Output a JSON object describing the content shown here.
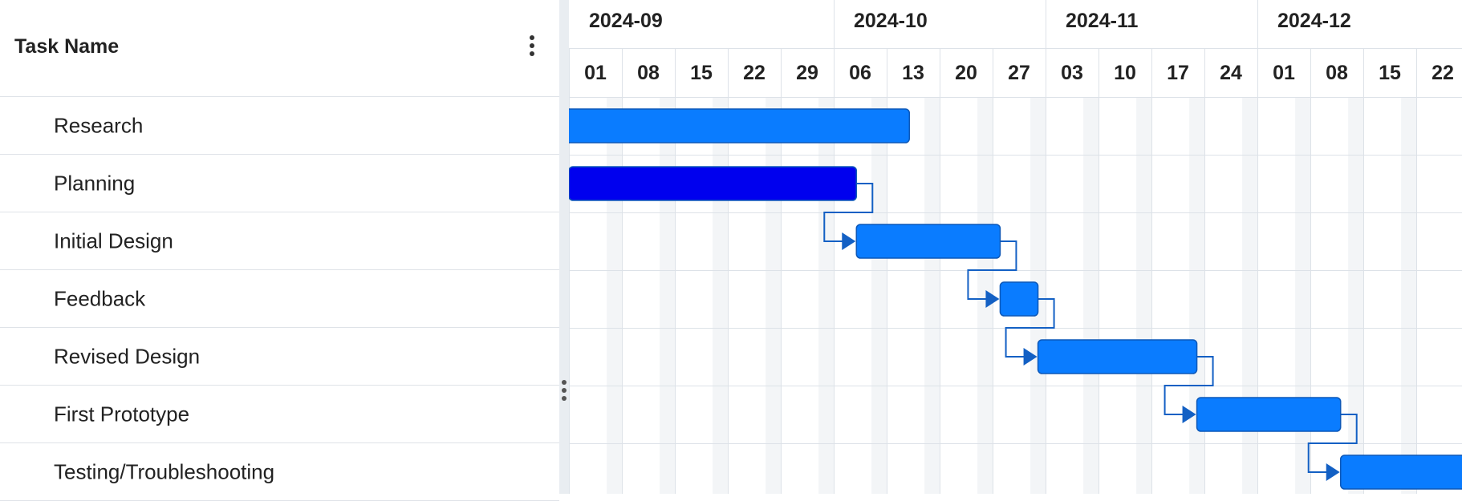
{
  "grid": {
    "header_title": "Task Name",
    "column_menu_icon": "more-vertical-icon",
    "tasks": [
      {
        "name": "Research"
      },
      {
        "name": "Planning"
      },
      {
        "name": "Initial Design"
      },
      {
        "name": "Feedback"
      },
      {
        "name": "Revised Design"
      },
      {
        "name": "First Prototype"
      },
      {
        "name": "Testing/Troubleshooting"
      }
    ]
  },
  "splitter": {
    "icon": "drag-handle-icon"
  },
  "timeline": {
    "months": [
      "2024-09",
      "2024-10",
      "2024-11",
      "2024-12"
    ],
    "weeks": [
      "01",
      "08",
      "15",
      "22",
      "29",
      "06",
      "13",
      "20",
      "27",
      "03",
      "10",
      "17",
      "24",
      "01",
      "08",
      "15",
      "22"
    ],
    "tasks": [
      {
        "name": "Research",
        "start": "2024-08-31",
        "end": "2024-10-16",
        "color": "#0a7cff"
      },
      {
        "name": "Planning",
        "start": "2024-09-01",
        "end": "2024-10-09",
        "color": "#0000ee"
      },
      {
        "name": "Initial Design",
        "start": "2024-10-09",
        "end": "2024-10-28",
        "color": "#0a7cff"
      },
      {
        "name": "Feedback",
        "start": "2024-10-28",
        "end": "2024-11-02",
        "color": "#0a7cff"
      },
      {
        "name": "Revised Design",
        "start": "2024-11-02",
        "end": "2024-11-23",
        "color": "#0a7cff"
      },
      {
        "name": "First Prototype",
        "start": "2024-11-23",
        "end": "2024-12-12",
        "color": "#0a7cff"
      },
      {
        "name": "Testing/Troubleshooting",
        "start": "2024-12-12",
        "end": "2025-01-01",
        "color": "#0a7cff"
      }
    ],
    "dependencies": [
      {
        "from": 1,
        "to": 2
      },
      {
        "from": 2,
        "to": 3
      },
      {
        "from": 3,
        "to": 4
      },
      {
        "from": 4,
        "to": 5
      },
      {
        "from": 5,
        "to": 6
      }
    ],
    "colors": {
      "bar_border": "#0d58b8",
      "link": "#1360c4",
      "grid_line": "#dde2e8",
      "weekend_shade": "#f3f5f7"
    }
  }
}
